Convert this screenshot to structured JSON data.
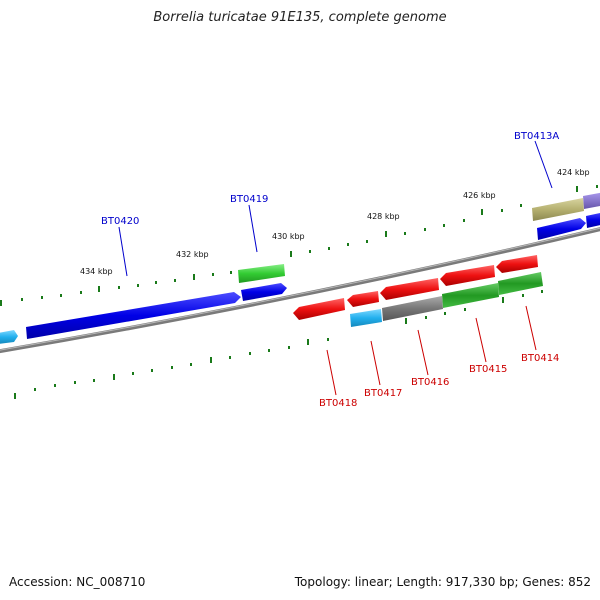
{
  "title": "Borrelia turicatae 91E135, complete genome",
  "footer": {
    "accession": "Accession: NC_008710",
    "summary": "Topology: linear; Length: 917,330 bp; Genes: 852"
  },
  "ruler_labels": [
    {
      "id": "434",
      "text": "434 kbp"
    },
    {
      "id": "432",
      "text": "432 kbp"
    },
    {
      "id": "430",
      "text": "430 kbp"
    },
    {
      "id": "428",
      "text": "428 kbp"
    },
    {
      "id": "426",
      "text": "426 kbp"
    },
    {
      "id": "424",
      "text": "424 kbp"
    }
  ],
  "gene_labels_forward": [
    {
      "id": "bt0420",
      "text": "BT0420"
    },
    {
      "id": "bt0419",
      "text": "BT0419"
    },
    {
      "id": "bt0413a",
      "text": "BT0413A"
    }
  ],
  "gene_labels_reverse": [
    {
      "id": "bt0418",
      "text": "BT0418"
    },
    {
      "id": "bt0417",
      "text": "BT0417"
    },
    {
      "id": "bt0416",
      "text": "BT0416"
    },
    {
      "id": "bt0415",
      "text": "BT0415"
    },
    {
      "id": "bt0414",
      "text": "BT0414"
    }
  ],
  "colors": {
    "forward_label": "#0000cc",
    "reverse_label": "#cc0000",
    "blue": "#0000e6",
    "cyan": "#33bbee",
    "green": "#33cc33",
    "red": "#ee1111",
    "gray": "#777777",
    "olive": "#b5b070",
    "purple": "#8877cc",
    "tick": "#1a7a1a",
    "backbone": "#888888"
  }
}
